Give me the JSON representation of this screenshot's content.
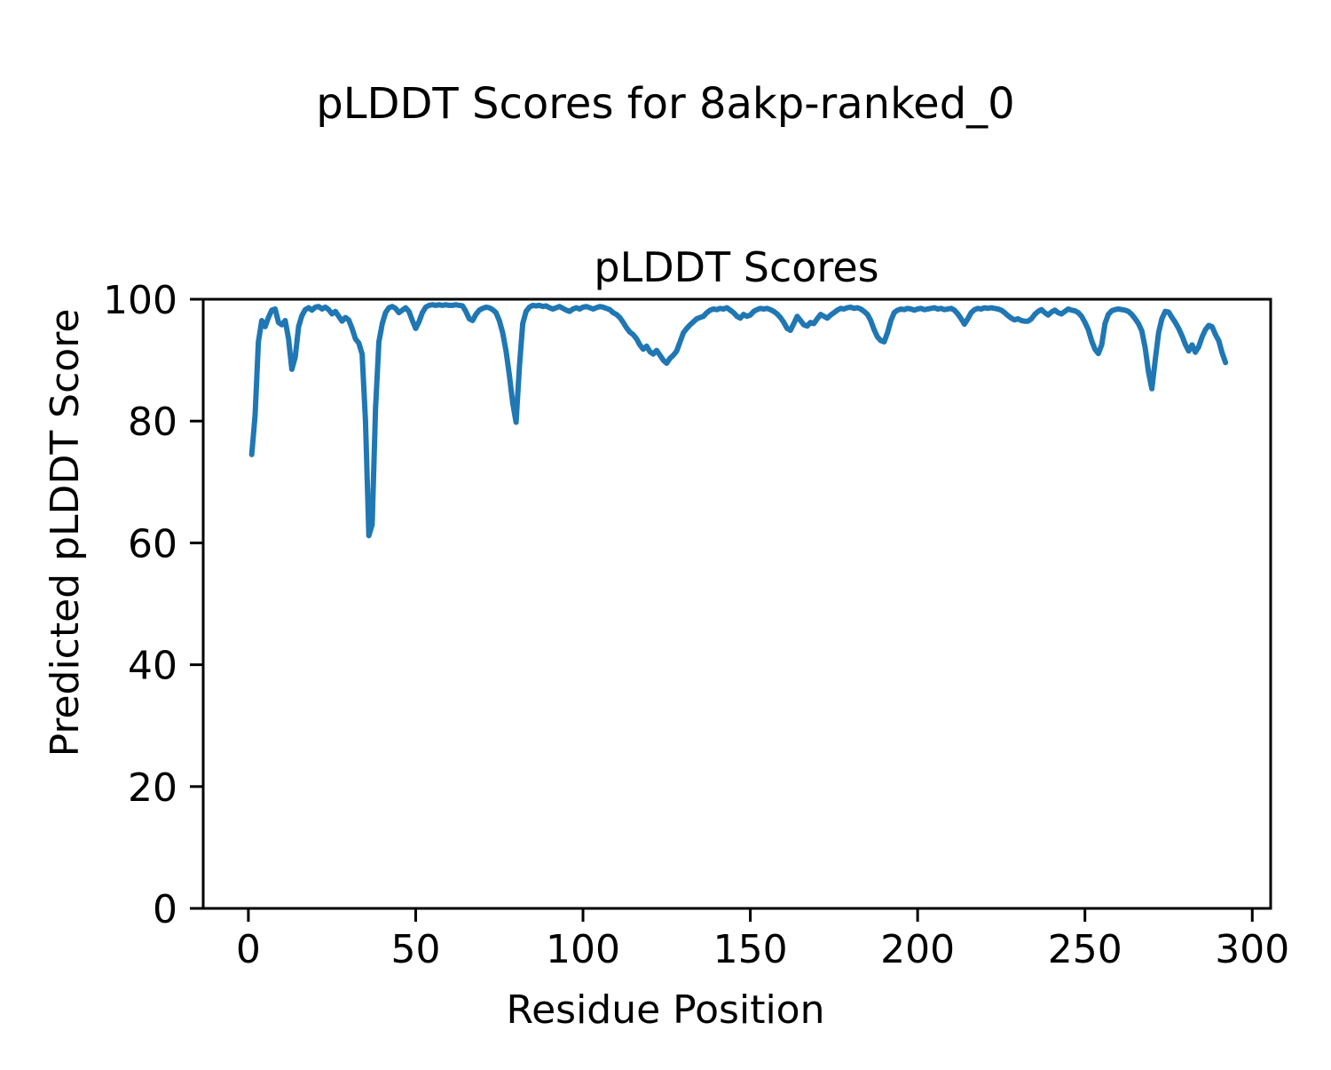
{
  "figure": {
    "suptitle": "pLDDT Scores for 8akp-ranked_0",
    "background": "#ffffff",
    "text_color": "#000000",
    "spine_color": "#000000"
  },
  "chart_data": {
    "type": "line",
    "title": "pLDDT Scores",
    "xlabel": "Residue Position",
    "ylabel": "Predicted pLDDT Score",
    "xlim": [
      -13.5,
      305.5
    ],
    "ylim": [
      0,
      100
    ],
    "xticks": [
      0,
      50,
      100,
      150,
      200,
      250,
      300
    ],
    "yticks": [
      0,
      20,
      40,
      60,
      80,
      100
    ],
    "grid": false,
    "legend": "none",
    "line_color": "#1f77b4",
    "line_width": 6,
    "series": [
      {
        "name": "pLDDT",
        "x_start": 1,
        "x_step": 1,
        "values": [
          74.5,
          81.0,
          93.0,
          96.5,
          95.5,
          97.0,
          98.2,
          98.4,
          96.2,
          95.8,
          96.5,
          93.5,
          88.5,
          90.5,
          95.5,
          97.3,
          98.3,
          98.6,
          98.2,
          98.7,
          98.8,
          98.4,
          98.7,
          98.3,
          97.6,
          98.0,
          97.2,
          96.4,
          97.0,
          96.6,
          95.2,
          93.5,
          92.8,
          91.0,
          80.0,
          61.2,
          63.0,
          82.0,
          93.0,
          96.0,
          97.8,
          98.6,
          98.8,
          98.5,
          97.8,
          98.2,
          98.6,
          98.0,
          96.5,
          95.2,
          96.3,
          97.8,
          98.7,
          99.0,
          99.1,
          99.0,
          99.1,
          99.0,
          99.1,
          99.0,
          99.0,
          99.1,
          99.0,
          98.9,
          98.0,
          96.8,
          96.5,
          97.5,
          98.2,
          98.5,
          98.7,
          98.6,
          98.3,
          97.8,
          96.5,
          94.5,
          91.5,
          87.5,
          83.0,
          79.8,
          89.0,
          96.0,
          98.0,
          98.7,
          99.0,
          98.9,
          99.0,
          98.8,
          98.9,
          98.6,
          98.4,
          98.6,
          98.8,
          98.5,
          98.2,
          98.0,
          98.4,
          98.6,
          98.4,
          98.7,
          98.8,
          98.6,
          98.4,
          98.6,
          98.8,
          98.7,
          98.5,
          98.3,
          97.8,
          97.5,
          97.0,
          96.2,
          95.3,
          94.6,
          94.2,
          93.5,
          92.5,
          91.8,
          92.3,
          91.4,
          91.0,
          91.6,
          90.8,
          90.0,
          89.5,
          90.3,
          90.8,
          91.5,
          93.0,
          94.5,
          95.2,
          95.8,
          96.3,
          96.8,
          97.0,
          97.2,
          97.8,
          98.2,
          98.4,
          98.3,
          98.5,
          98.4,
          98.6,
          98.2,
          97.8,
          97.2,
          96.9,
          97.5,
          97.2,
          97.4,
          98.0,
          98.3,
          98.5,
          98.4,
          98.5,
          98.3,
          98.0,
          97.6,
          97.0,
          96.2,
          95.2,
          94.9,
          96.0,
          97.2,
          96.5,
          95.8,
          95.6,
          96.2,
          96.0,
          96.8,
          97.5,
          97.2,
          96.9,
          97.4,
          97.8,
          98.2,
          98.5,
          98.4,
          98.6,
          98.7,
          98.5,
          98.6,
          98.4,
          98.0,
          97.5,
          96.5,
          95.0,
          93.8,
          93.2,
          93.0,
          94.5,
          96.5,
          97.8,
          98.2,
          98.4,
          98.3,
          98.5,
          98.4,
          98.2,
          98.4,
          98.5,
          98.3,
          98.4,
          98.5,
          98.6,
          98.4,
          98.5,
          98.3,
          98.4,
          98.5,
          98.2,
          97.6,
          96.8,
          95.9,
          96.8,
          97.8,
          98.3,
          98.5,
          98.4,
          98.6,
          98.5,
          98.6,
          98.5,
          98.4,
          98.2,
          97.8,
          97.3,
          96.9,
          96.6,
          96.8,
          96.5,
          96.4,
          96.4,
          96.8,
          97.5,
          98.0,
          98.3,
          97.8,
          97.4,
          97.9,
          98.2,
          97.8,
          97.6,
          98.0,
          98.4,
          98.2,
          98.1,
          97.8,
          97.2,
          96.2,
          95.0,
          93.2,
          91.8,
          91.1,
          92.5,
          96.0,
          97.5,
          98.1,
          98.3,
          98.4,
          98.3,
          98.2,
          98.0,
          97.5,
          96.8,
          96.0,
          94.8,
          92.0,
          88.0,
          85.3,
          90.0,
          94.5,
          96.8,
          98.0,
          97.9,
          97.0,
          96.2,
          95.2,
          94.0,
          92.6,
          91.5,
          92.5,
          91.3,
          92.2,
          93.8,
          95.0,
          95.7,
          95.5,
          94.2,
          93.2,
          91.2,
          89.6
        ]
      }
    ]
  }
}
